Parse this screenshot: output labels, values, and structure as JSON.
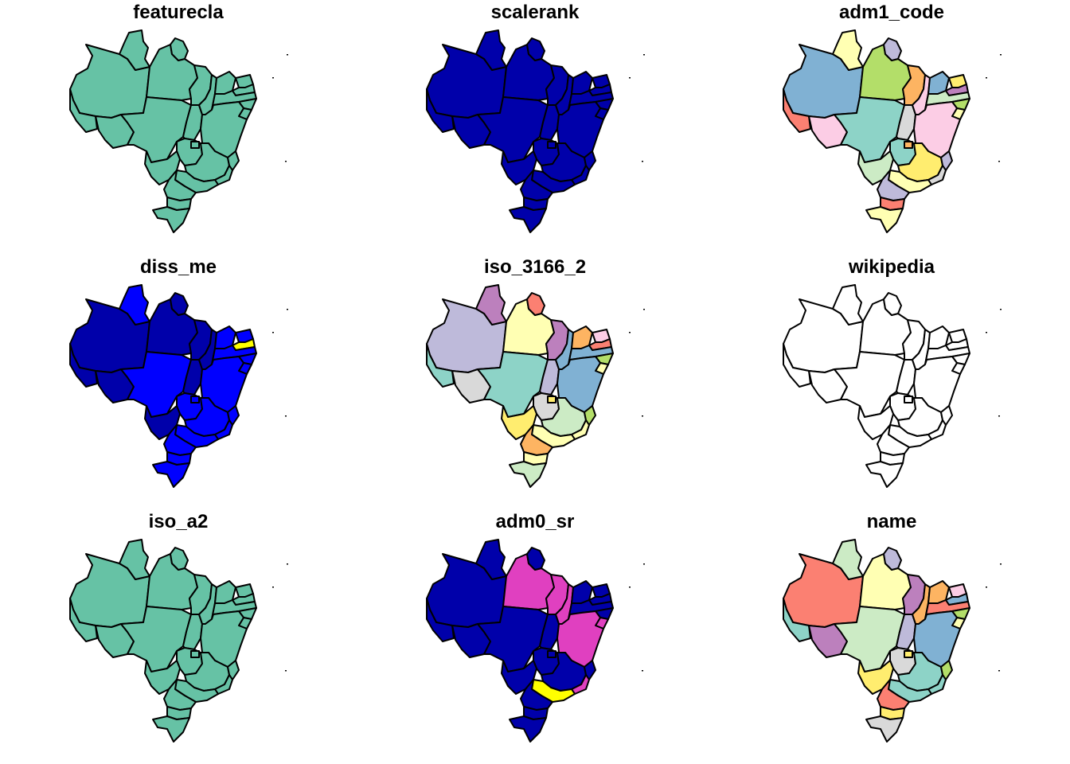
{
  "figure": {
    "panels": [
      {
        "title": "featurecla",
        "colors": {
          "AC": "#66C2A5",
          "AM": "#66C2A5",
          "RR": "#66C2A5",
          "PA": "#66C2A5",
          "AP": "#66C2A5",
          "RO": "#66C2A5",
          "MT": "#66C2A5",
          "MA": "#66C2A5",
          "TO": "#66C2A5",
          "PI": "#66C2A5",
          "CE": "#66C2A5",
          "RN": "#66C2A5",
          "PB": "#66C2A5",
          "PE": "#66C2A5",
          "AL": "#66C2A5",
          "SE": "#66C2A5",
          "BA": "#66C2A5",
          "GO": "#66C2A5",
          "DF": "#66C2A5",
          "MS": "#66C2A5",
          "MG": "#66C2A5",
          "ES": "#66C2A5",
          "RJ": "#66C2A5",
          "SP": "#66C2A5",
          "PR": "#66C2A5",
          "SC": "#66C2A5",
          "RS": "#66C2A5"
        }
      },
      {
        "title": "scalerank",
        "colors": {
          "AC": "#0000AA",
          "AM": "#0000AA",
          "RR": "#0000AA",
          "PA": "#0000AA",
          "AP": "#0000AA",
          "RO": "#0000AA",
          "MT": "#0000AA",
          "MA": "#0000AA",
          "TO": "#0000AA",
          "PI": "#0000AA",
          "CE": "#0000AA",
          "RN": "#0000AA",
          "PB": "#0000AA",
          "PE": "#0000AA",
          "AL": "#0000AA",
          "SE": "#0000AA",
          "BA": "#0000AA",
          "GO": "#0000AA",
          "DF": "#0000AA",
          "MS": "#0000AA",
          "MG": "#0000AA",
          "ES": "#0000AA",
          "RJ": "#0000AA",
          "SP": "#0000AA",
          "PR": "#0000AA",
          "SC": "#0000AA",
          "RS": "#0000AA"
        }
      },
      {
        "title": "adm1_code",
        "colors": {
          "AC": "#FB8072",
          "AM": "#80B1D3",
          "RR": "#FFFFB3",
          "PA": "#B3DE69",
          "AP": "#BEBADA",
          "RO": "#FCCDE5",
          "MT": "#8DD3C7",
          "MA": "#FDB462",
          "TO": "#D9D9D9",
          "PI": "#FCCDE5",
          "CE": "#80B1D3",
          "RN": "#FFED6F",
          "PB": "#BC80BD",
          "PE": "#CCEBC5",
          "AL": "#B3DE69",
          "SE": "#FFFFB3",
          "BA": "#FCCDE5",
          "GO": "#8DD3C7",
          "DF": "#FDB462",
          "MS": "#CCEBC5",
          "MG": "#FFED6F",
          "ES": "#BEBADA",
          "RJ": "#D9D9D9",
          "SP": "#FFFFB3",
          "PR": "#BEBADA",
          "SC": "#FB8072",
          "RS": "#FFFFB3"
        }
      },
      {
        "title": "diss_me",
        "colors": {
          "AC": "#0000AA",
          "AM": "#0000AA",
          "RR": "#0000FF",
          "PA": "#0000AA",
          "AP": "#0000AA",
          "RO": "#0000AA",
          "MT": "#0000FF",
          "MA": "#0000AA",
          "TO": "#0000AA",
          "PI": "#0000AA",
          "CE": "#0000FF",
          "RN": "#0000FF",
          "PB": "#FFFF00",
          "PE": "#0000FF",
          "AL": "#0000FF",
          "SE": "#0000FF",
          "BA": "#0000FF",
          "GO": "#0000FF",
          "DF": "#0000FF",
          "MS": "#0000AA",
          "MG": "#0000FF",
          "ES": "#0000FF",
          "RJ": "#0000FF",
          "SP": "#0000FF",
          "PR": "#0000FF",
          "SC": "#0000FF",
          "RS": "#0000FF"
        }
      },
      {
        "title": "iso_3166_2",
        "colors": {
          "AC": "#8DD3C7",
          "AM": "#BEBADA",
          "RR": "#BC80BD",
          "PA": "#FFFFB3",
          "AP": "#FB8072",
          "RO": "#D9D9D9",
          "MT": "#8DD3C7",
          "MA": "#BC80BD",
          "TO": "#BEBADA",
          "PI": "#80B1D3",
          "CE": "#FDB462",
          "RN": "#FCCDE5",
          "PB": "#FB8072",
          "PE": "#80B1D3",
          "AL": "#B3DE69",
          "SE": "#FFFFB3",
          "BA": "#80B1D3",
          "GO": "#D9D9D9",
          "DF": "#FFED6F",
          "MS": "#FFED6F",
          "MG": "#CCEBC5",
          "ES": "#B3DE69",
          "RJ": "#FFFFB3",
          "SP": "#FFFFB3",
          "PR": "#FDB462",
          "SC": "#FFFFB3",
          "RS": "#CCEBC5"
        }
      },
      {
        "title": "wikipedia",
        "colors": {
          "AC": "#FFFFFF",
          "AM": "#FFFFFF",
          "RR": "#FFFFFF",
          "PA": "#FFFFFF",
          "AP": "#FFFFFF",
          "RO": "#FFFFFF",
          "MT": "#FFFFFF",
          "MA": "#FFFFFF",
          "TO": "#FFFFFF",
          "PI": "#FFFFFF",
          "CE": "#FFFFFF",
          "RN": "#FFFFFF",
          "PB": "#FFFFFF",
          "PE": "#FFFFFF",
          "AL": "#FFFFFF",
          "SE": "#FFFFFF",
          "BA": "#FFFFFF",
          "GO": "#FFFFFF",
          "DF": "#FFFFFF",
          "MS": "#FFFFFF",
          "MG": "#FFFFFF",
          "ES": "#FFFFFF",
          "RJ": "#FFFFFF",
          "SP": "#FFFFFF",
          "PR": "#FFFFFF",
          "SC": "#FFFFFF",
          "RS": "#FFFFFF"
        }
      },
      {
        "title": "iso_a2",
        "colors": {
          "AC": "#66C2A5",
          "AM": "#66C2A5",
          "RR": "#66C2A5",
          "PA": "#66C2A5",
          "AP": "#66C2A5",
          "RO": "#66C2A5",
          "MT": "#66C2A5",
          "MA": "#66C2A5",
          "TO": "#66C2A5",
          "PI": "#66C2A5",
          "CE": "#66C2A5",
          "RN": "#66C2A5",
          "PB": "#66C2A5",
          "PE": "#66C2A5",
          "AL": "#66C2A5",
          "SE": "#66C2A5",
          "BA": "#66C2A5",
          "GO": "#66C2A5",
          "DF": "#66C2A5",
          "MS": "#66C2A5",
          "MG": "#66C2A5",
          "ES": "#66C2A5",
          "RJ": "#66C2A5",
          "SP": "#66C2A5",
          "PR": "#66C2A5",
          "SC": "#66C2A5",
          "RS": "#66C2A5"
        }
      },
      {
        "title": "adm0_sr",
        "colors": {
          "AC": "#0000AA",
          "AM": "#0000AA",
          "RR": "#0000AA",
          "PA": "#E040C0",
          "AP": "#0000AA",
          "RO": "#0000AA",
          "MT": "#0000AA",
          "MA": "#E040C0",
          "TO": "#0000AA",
          "PI": "#E040C0",
          "CE": "#0000AA",
          "RN": "#0000AA",
          "PB": "#0000AA",
          "PE": "#0000AA",
          "AL": "#0000AA",
          "SE": "#E040C0",
          "BA": "#E040C0",
          "GO": "#0000AA",
          "DF": "#0000AA",
          "MS": "#0000AA",
          "MG": "#0000AA",
          "ES": "#0000AA",
          "RJ": "#E040C0",
          "SP": "#FFFF00",
          "PR": "#0000AA",
          "SC": "#0000AA",
          "RS": "#0000AA"
        }
      },
      {
        "title": "name",
        "colors": {
          "AC": "#8DD3C7",
          "AM": "#FB8072",
          "RR": "#CCEBC5",
          "PA": "#FFFFB3",
          "AP": "#BEBADA",
          "RO": "#BC80BD",
          "MT": "#CCEBC5",
          "MA": "#BC80BD",
          "TO": "#BEBADA",
          "PI": "#FDB462",
          "CE": "#FDB462",
          "RN": "#FCCDE5",
          "PB": "#80B1D3",
          "PE": "#FB8072",
          "AL": "#B3DE69",
          "SE": "#FFFFB3",
          "BA": "#80B1D3",
          "GO": "#D9D9D9",
          "DF": "#FFED6F",
          "MS": "#FFED6F",
          "MG": "#8DD3C7",
          "ES": "#B3DE69",
          "RJ": "#8DD3C7",
          "SP": "#8DD3C7",
          "PR": "#FB8072",
          "SC": "#FFED6F",
          "RS": "#D9D9D9"
        }
      }
    ]
  }
}
